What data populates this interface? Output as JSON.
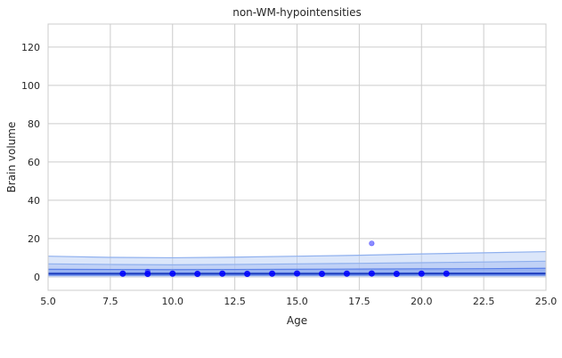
{
  "chart_data": {
    "type": "scatter",
    "title": "non-WM-hypointensities",
    "xlabel": "Age",
    "ylabel": "Brain volume",
    "xlim": [
      5,
      25
    ],
    "ylim": [
      -7,
      132
    ],
    "grid": true,
    "x_ticks": [
      "5.0",
      "7.5",
      "10.0",
      "12.5",
      "15.0",
      "17.5",
      "20.0",
      "22.5",
      "25.0"
    ],
    "y_ticks": [
      "0",
      "20",
      "40",
      "60",
      "80",
      "100",
      "120"
    ],
    "colors": {
      "points": "#0000ff",
      "median_line": "#1f3fbf",
      "band_outer": "#b8cdf5",
      "band_middle": "#a9c0f2",
      "band_inner": "#7f9ff0",
      "band_edge": "#8fb0ee",
      "grid": "#cccccc"
    },
    "points": [
      {
        "x": 8,
        "y": 1.7
      },
      {
        "x": 9,
        "y": 1.6
      },
      {
        "x": 9,
        "y": 2.8
      },
      {
        "x": 10,
        "y": 1.7
      },
      {
        "x": 11,
        "y": 1.6
      },
      {
        "x": 12,
        "y": 1.7
      },
      {
        "x": 13,
        "y": 1.6
      },
      {
        "x": 14,
        "y": 1.7
      },
      {
        "x": 15,
        "y": 1.8
      },
      {
        "x": 16,
        "y": 1.6
      },
      {
        "x": 17,
        "y": 1.7
      },
      {
        "x": 18,
        "y": 1.8
      },
      {
        "x": 18,
        "y": 17.5
      },
      {
        "x": 19,
        "y": 1.6
      },
      {
        "x": 20,
        "y": 1.7
      },
      {
        "x": 21,
        "y": 1.7
      }
    ],
    "bands": {
      "x": [
        5,
        7.5,
        10,
        12.5,
        15,
        17.5,
        20,
        22.5,
        25
      ],
      "outer_upper": [
        10.8,
        10.2,
        10.0,
        10.3,
        10.8,
        11.3,
        12.0,
        12.6,
        13.2
      ],
      "outer_lower": [
        -0.2,
        -0.2,
        -0.2,
        -0.2,
        -0.2,
        -0.2,
        -0.2,
        -0.2,
        -0.2
      ],
      "middle_upper": [
        6.8,
        6.5,
        6.3,
        6.5,
        6.8,
        7.1,
        7.4,
        7.8,
        8.2
      ],
      "middle_lower": [
        0.3,
        0.3,
        0.3,
        0.3,
        0.3,
        0.3,
        0.3,
        0.3,
        0.3
      ],
      "inner_upper": [
        4.0,
        3.9,
        3.8,
        3.9,
        4.0,
        4.1,
        4.2,
        4.3,
        4.5
      ],
      "inner_lower": [
        0.9,
        0.9,
        0.9,
        0.9,
        0.9,
        0.9,
        0.9,
        0.9,
        0.9
      ],
      "median": [
        1.7,
        1.7,
        1.7,
        1.7,
        1.7,
        1.7,
        1.8,
        1.8,
        1.8
      ]
    }
  }
}
